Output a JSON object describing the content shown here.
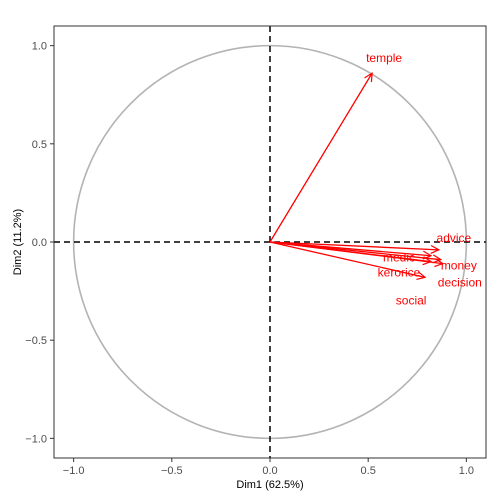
{
  "chart_data": {
    "type": "scatter",
    "subtype": "pca-variable-correlation-circle",
    "title": "",
    "xlabel": "Dim1 (62.5%)",
    "ylabel": "Dim2 (11.2%)",
    "xlim": [
      -1.1,
      1.1
    ],
    "ylim": [
      -1.1,
      1.1
    ],
    "x_ticks": [
      -1.0,
      -0.5,
      0.0,
      0.5,
      1.0
    ],
    "y_ticks": [
      -1.0,
      -0.5,
      0.0,
      0.5,
      1.0
    ],
    "x_tick_labels": [
      "−1.0",
      "−0.5",
      "0.0",
      "0.5",
      "1.0"
    ],
    "y_tick_labels": [
      "−1.0",
      "−0.5",
      "0.0",
      "0.5",
      "1.0"
    ],
    "grid": false,
    "unit_circle": true,
    "reference_lines": "dashed lines at x=0 and y=0",
    "colors": {
      "arrows": "#ff0000",
      "circle": "#b3b3b3",
      "axes": "#333333",
      "reference_lines": "#000000"
    },
    "variables": [
      {
        "name": "temple",
        "x": 0.52,
        "y": 0.86
      },
      {
        "name": "advice",
        "x": 0.86,
        "y": -0.04
      },
      {
        "name": "medic",
        "x": 0.82,
        "y": -0.07
      },
      {
        "name": "money",
        "x": 0.87,
        "y": -0.09
      },
      {
        "name": "kerorice",
        "x": 0.82,
        "y": -0.1
      },
      {
        "name": "decision",
        "x": 0.88,
        "y": -0.11
      },
      {
        "name": "social",
        "x": 0.79,
        "y": -0.18
      }
    ]
  }
}
